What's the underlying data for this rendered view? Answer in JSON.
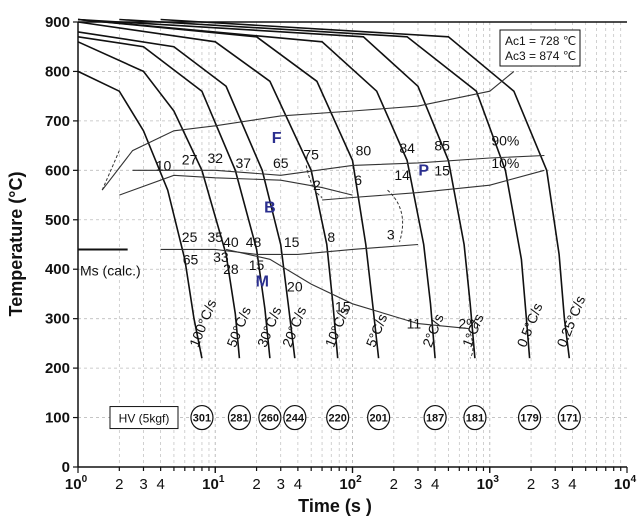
{
  "chart_data": {
    "type": "line",
    "title": "",
    "xlabel": "Time (s )",
    "ylabel": "Temperature (°C)",
    "x_scale": "log",
    "xlim": [
      1,
      10000
    ],
    "ylim": [
      0,
      900
    ],
    "y_ticks": [
      "0",
      "100",
      "200",
      "300",
      "400",
      "500",
      "600",
      "700",
      "800",
      "900"
    ],
    "x_decade_labels": [
      {
        "x": 1,
        "base": "10",
        "exp": "0"
      },
      {
        "x": 10,
        "base": "10",
        "exp": "1"
      },
      {
        "x": 100,
        "base": "10",
        "exp": "2"
      },
      {
        "x": 1000,
        "base": "10",
        "exp": "3"
      },
      {
        "x": 10000,
        "base": "10",
        "exp": "4"
      }
    ],
    "x_minor_labels": [
      {
        "x": 2,
        "text": "2"
      },
      {
        "x": 3,
        "text": "3"
      },
      {
        "x": 4,
        "text": "4"
      },
      {
        "x": 20,
        "text": "2"
      },
      {
        "x": 30,
        "text": "3"
      },
      {
        "x": 40,
        "text": "4"
      },
      {
        "x": 200,
        "text": "2"
      },
      {
        "x": 300,
        "text": "3"
      },
      {
        "x": 400,
        "text": "4"
      },
      {
        "x": 2000,
        "text": "2"
      },
      {
        "x": 3000,
        "text": "3"
      },
      {
        "x": 4000,
        "text": "4"
      }
    ],
    "grid": true,
    "info_box": [
      "Ac1 = 728 ℃",
      "Ac3 = 874 ℃"
    ],
    "ms_label": "Ms (calc.)",
    "ms_temp": 440,
    "phase_labels": [
      {
        "text": "F",
        "x": 28,
        "y": 655
      },
      {
        "text": "B",
        "x": 25,
        "y": 515
      },
      {
        "text": "P",
        "x": 330,
        "y": 590
      },
      {
        "text": "M",
        "x": 22,
        "y": 365
      }
    ],
    "cooling_curves": [
      {
        "rate": "100°C/s",
        "hv": "301",
        "points": [
          [
            1,
            800
          ],
          [
            2,
            760
          ],
          [
            3,
            680
          ],
          [
            4.5,
            560
          ],
          [
            6,
            420
          ],
          [
            7,
            300
          ],
          [
            8,
            220
          ]
        ]
      },
      {
        "rate": "50°C/s",
        "hv": "281",
        "points": [
          [
            1,
            860
          ],
          [
            3,
            800
          ],
          [
            5,
            720
          ],
          [
            8,
            600
          ],
          [
            12,
            430
          ],
          [
            14,
            310
          ],
          [
            15,
            220
          ]
        ]
      },
      {
        "rate": "30°C/s",
        "hv": "260",
        "points": [
          [
            1,
            870
          ],
          [
            3,
            850
          ],
          [
            8,
            760
          ],
          [
            14,
            600
          ],
          [
            20,
            440
          ],
          [
            23,
            320
          ],
          [
            25,
            220
          ]
        ]
      },
      {
        "rate": "20°C/s",
        "hv": "244",
        "points": [
          [
            1,
            880
          ],
          [
            5,
            850
          ],
          [
            12,
            770
          ],
          [
            22,
            600
          ],
          [
            30,
            450
          ],
          [
            34,
            330
          ],
          [
            38,
            220
          ]
        ]
      },
      {
        "rate": "10°C/s",
        "hv": "220",
        "points": [
          [
            1,
            900
          ],
          [
            10,
            860
          ],
          [
            25,
            780
          ],
          [
            50,
            600
          ],
          [
            65,
            450
          ],
          [
            72,
            330
          ],
          [
            78,
            220
          ]
        ]
      },
      {
        "rate": "5°C/s",
        "hv": "201",
        "points": [
          [
            1,
            905
          ],
          [
            20,
            870
          ],
          [
            55,
            780
          ],
          [
            100,
            620
          ],
          [
            125,
            450
          ],
          [
            140,
            330
          ],
          [
            155,
            220
          ]
        ]
      },
      {
        "rate": "2°C/s",
        "hv": "187",
        "points": [
          [
            1,
            905
          ],
          [
            60,
            860
          ],
          [
            150,
            760
          ],
          [
            250,
            620
          ],
          [
            330,
            450
          ],
          [
            370,
            330
          ],
          [
            400,
            220
          ]
        ]
      },
      {
        "rate": "1°C/s",
        "hv": "181",
        "points": [
          [
            1,
            905
          ],
          [
            120,
            870
          ],
          [
            300,
            770
          ],
          [
            500,
            620
          ],
          [
            650,
            450
          ],
          [
            720,
            330
          ],
          [
            780,
            220
          ]
        ]
      },
      {
        "rate": "0.5°C/s",
        "hv": "179",
        "points": [
          [
            2,
            905
          ],
          [
            250,
            870
          ],
          [
            800,
            760
          ],
          [
            1300,
            600
          ],
          [
            1700,
            420
          ],
          [
            1850,
            300
          ],
          [
            1950,
            220
          ]
        ]
      },
      {
        "rate": "0.25°C/s",
        "hv": "171",
        "points": [
          [
            4,
            905
          ],
          [
            500,
            870
          ],
          [
            1500,
            760
          ],
          [
            2600,
            600
          ],
          [
            3200,
            430
          ],
          [
            3500,
            300
          ],
          [
            3800,
            220
          ]
        ]
      }
    ],
    "transformation_lines": [
      {
        "name": "F start",
        "points": [
          [
            1.5,
            560
          ],
          [
            2.5,
            640
          ],
          [
            5,
            680
          ],
          [
            10,
            690
          ],
          [
            30,
            710
          ],
          [
            100,
            720
          ],
          [
            300,
            730
          ],
          [
            1000,
            760
          ],
          [
            1500,
            800
          ]
        ]
      },
      {
        "name": "F/P upper",
        "points": [
          [
            2.5,
            600
          ],
          [
            10,
            600
          ],
          [
            30,
            590
          ],
          [
            100,
            610
          ],
          [
            300,
            615
          ],
          [
            1000,
            625
          ],
          [
            2500,
            630
          ]
        ]
      },
      {
        "name": "P lower",
        "points": [
          [
            60,
            540
          ],
          [
            100,
            545
          ],
          [
            300,
            555
          ],
          [
            1000,
            570
          ],
          [
            2500,
            600
          ]
        ]
      },
      {
        "name": "B start",
        "points": [
          [
            2,
            550
          ],
          [
            5,
            590
          ],
          [
            10,
            585
          ],
          [
            30,
            580
          ],
          [
            60,
            565
          ],
          [
            100,
            550
          ]
        ]
      },
      {
        "name": "B end",
        "points": [
          [
            4,
            440
          ],
          [
            10,
            440
          ],
          [
            20,
            430
          ],
          [
            40,
            430
          ],
          [
            100,
            440
          ],
          [
            300,
            450
          ]
        ]
      },
      {
        "name": "M line",
        "points": [
          [
            12,
            440
          ],
          [
            25,
            420
          ],
          [
            50,
            370
          ],
          [
            100,
            330
          ],
          [
            300,
            290
          ],
          [
            700,
            280
          ]
        ]
      }
    ],
    "point_labels": [
      {
        "text": "10",
        "x": 4.2,
        "y": 600
      },
      {
        "text": "27",
        "x": 6.5,
        "y": 612
      },
      {
        "text": "32",
        "x": 10,
        "y": 615
      },
      {
        "text": "37",
        "x": 16,
        "y": 605
      },
      {
        "text": "65",
        "x": 30,
        "y": 605
      },
      {
        "text": "75",
        "x": 50,
        "y": 622
      },
      {
        "text": "80",
        "x": 120,
        "y": 630
      },
      {
        "text": "84",
        "x": 250,
        "y": 635
      },
      {
        "text": "85",
        "x": 450,
        "y": 640
      },
      {
        "text": "90%",
        "x": 1300,
        "y": 650
      },
      {
        "text": "10%",
        "x": 1300,
        "y": 605
      },
      {
        "text": "2",
        "x": 55,
        "y": 560
      },
      {
        "text": "6",
        "x": 110,
        "y": 570
      },
      {
        "text": "14",
        "x": 230,
        "y": 580
      },
      {
        "text": "15",
        "x": 450,
        "y": 590
      },
      {
        "text": "25",
        "x": 6.5,
        "y": 455
      },
      {
        "text": "35",
        "x": 10,
        "y": 455
      },
      {
        "text": "40",
        "x": 13,
        "y": 445
      },
      {
        "text": "48",
        "x": 19,
        "y": 445
      },
      {
        "text": "15",
        "x": 36,
        "y": 445
      },
      {
        "text": "8",
        "x": 70,
        "y": 455
      },
      {
        "text": "3",
        "x": 190,
        "y": 460
      },
      {
        "text": "65",
        "x": 6.6,
        "y": 410
      },
      {
        "text": "33",
        "x": 11,
        "y": 415
      },
      {
        "text": "28",
        "x": 13,
        "y": 390
      },
      {
        "text": "15",
        "x": 20,
        "y": 398
      },
      {
        "text": "20",
        "x": 38,
        "y": 355
      },
      {
        "text": "15",
        "x": 85,
        "y": 315
      },
      {
        "text": "11",
        "x": 280,
        "y": 280
      },
      {
        "text": "2%",
        "x": 700,
        "y": 280
      }
    ],
    "hv_title": "HV (5kgf)"
  }
}
